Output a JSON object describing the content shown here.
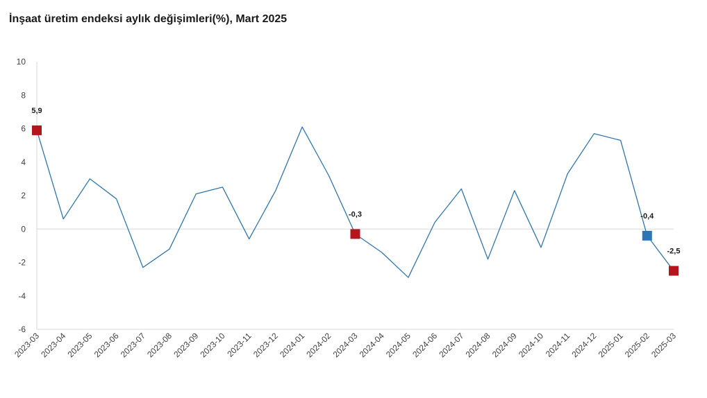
{
  "chart_data": {
    "type": "line",
    "title": "İnşaat üretim endeksi aylık değişimleri(%), Mart 2025",
    "xlabel": "",
    "ylabel": "",
    "ylim": [
      -6,
      10
    ],
    "yticks": [
      10,
      8,
      6,
      4,
      2,
      0,
      -2,
      -4,
      -6
    ],
    "categories": [
      "2023-03",
      "2023-04",
      "2023-05",
      "2023-06",
      "2023-07",
      "2023-08",
      "2023-09",
      "2023-10",
      "2023-11",
      "2023-12",
      "2024-01",
      "2024-02",
      "2024-03",
      "2024-04",
      "2024-05",
      "2024-06",
      "2024-07",
      "2024-08",
      "2024-09",
      "2024-10",
      "2024-11",
      "2024-12",
      "2025-01",
      "2025-02",
      "2025-03"
    ],
    "series": [
      {
        "values": [
          5.9,
          0.6,
          3.0,
          1.8,
          -2.3,
          -1.2,
          2.1,
          2.5,
          -0.6,
          2.3,
          6.1,
          3.2,
          -0.3,
          -1.4,
          -2.9,
          0.4,
          2.4,
          -1.8,
          2.3,
          -1.1,
          3.3,
          5.7,
          5.3,
          -0.4,
          -2.5
        ]
      }
    ],
    "line_color": "#2e75b6",
    "zero_line_color": "#d9d9d9",
    "grid": false,
    "highlights": [
      {
        "index": 0,
        "label": "5,9",
        "color": "#b5161b"
      },
      {
        "index": 12,
        "label": "-0,3",
        "color": "#b5161b"
      },
      {
        "index": 23,
        "label": "-0,4",
        "color": "#2e75b6"
      },
      {
        "index": 24,
        "label": "-2,5",
        "color": "#b5161b"
      }
    ]
  }
}
